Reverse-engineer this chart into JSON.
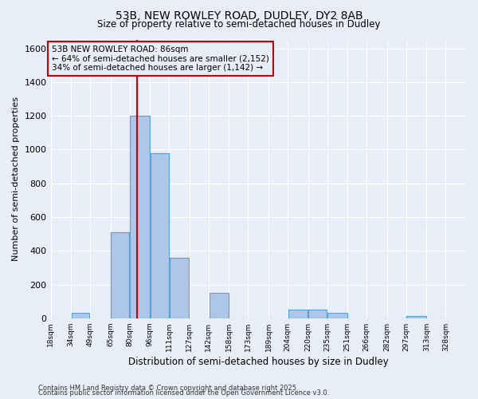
{
  "title": "53B, NEW ROWLEY ROAD, DUDLEY, DY2 8AB",
  "subtitle": "Size of property relative to semi-detached houses in Dudley",
  "xlabel": "Distribution of semi-detached houses by size in Dudley",
  "ylabel": "Number of semi-detached properties",
  "property_size": 86,
  "annotation_line1": "53B NEW ROWLEY ROAD: 86sqm",
  "annotation_line2": "← 64% of semi-detached houses are smaller (2,152)",
  "annotation_line3": "34% of semi-detached houses are larger (1,142) →",
  "footnote1": "Contains HM Land Registry data © Crown copyright and database right 2025.",
  "footnote2": "Contains public sector information licensed under the Open Government Licence v3.0.",
  "bin_edges": [
    18,
    34,
    49,
    65,
    80,
    96,
    111,
    127,
    142,
    158,
    173,
    189,
    204,
    220,
    235,
    251,
    266,
    282,
    297,
    313,
    328
  ],
  "bar_heights": [
    0,
    30,
    0,
    510,
    1200,
    980,
    360,
    0,
    150,
    0,
    0,
    0,
    50,
    50,
    30,
    0,
    0,
    0,
    15,
    0
  ],
  "bar_color": "#aec6e8",
  "bar_edge_color": "#5a9fd4",
  "red_line_color": "#cc0000",
  "annotation_box_color": "#cc0000",
  "background_color": "#e8eef8",
  "ylim": [
    0,
    1650
  ],
  "yticks": [
    0,
    200,
    400,
    600,
    800,
    1000,
    1200,
    1400,
    1600
  ]
}
